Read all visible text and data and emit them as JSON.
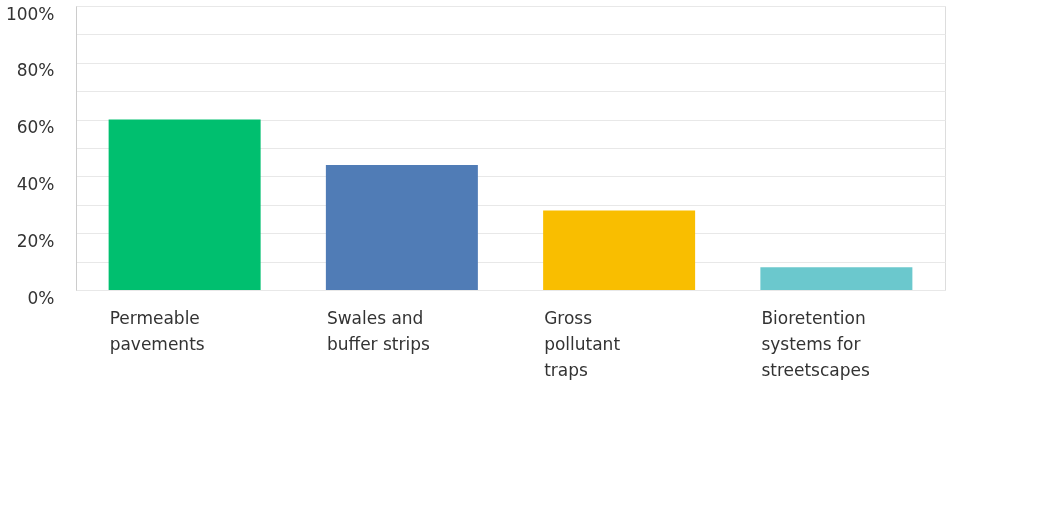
{
  "chart_data": {
    "type": "bar",
    "categories": [
      "Permeable pavements",
      "Swales and buffer strips",
      "Gross pollutant traps",
      "Bioretention systems for streetscapes"
    ],
    "values": [
      60,
      44,
      28,
      8
    ],
    "colors": [
      "#00bf6f",
      "#507cb6",
      "#f9be00",
      "#6bc8cd"
    ],
    "ylim": [
      0,
      100
    ],
    "yticks": [
      {
        "value": 0,
        "label": "0%"
      },
      {
        "value": 10,
        "label": null
      },
      {
        "value": 20,
        "label": "20%"
      },
      {
        "value": 30,
        "label": null
      },
      {
        "value": 40,
        "label": "40%"
      },
      {
        "value": 50,
        "label": null
      },
      {
        "value": 60,
        "label": "60%"
      },
      {
        "value": 70,
        "label": null
      },
      {
        "value": 80,
        "label": "80%"
      },
      {
        "value": 90,
        "label": null
      },
      {
        "value": 100,
        "label": "100%"
      }
    ],
    "grid": "y"
  }
}
